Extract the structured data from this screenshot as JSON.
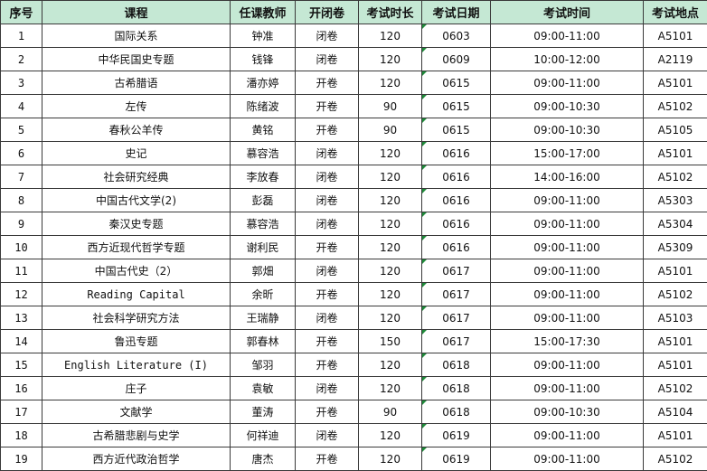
{
  "headers": [
    "序号",
    "课程",
    "任课教师",
    "开闭卷",
    "考试时长",
    "考试日期",
    "考试时间",
    "考试地点"
  ],
  "colors": {
    "header_bg": "#c5e8d4",
    "text_warning_marker": "#1f8b3a"
  },
  "rows": [
    [
      "1",
      "国际关系",
      "钟准",
      "闭卷",
      "120",
      "0603",
      "09:00-11:00",
      "A5101"
    ],
    [
      "2",
      "中华民国史专题",
      "钱锋",
      "闭卷",
      "120",
      "0609",
      "10:00-12:00",
      "A2119"
    ],
    [
      "3",
      "古希腊语",
      "潘亦婷",
      "开卷",
      "120",
      "0615",
      "09:00-11:00",
      "A5101"
    ],
    [
      "4",
      "左传",
      "陈绪波",
      "开卷",
      "90",
      "0615",
      "09:00-10:30",
      "A5102"
    ],
    [
      "5",
      "春秋公羊传",
      "黄铭",
      "开卷",
      "90",
      "0615",
      "09:00-10:30",
      "A5105"
    ],
    [
      "6",
      "史记",
      "慕容浩",
      "闭卷",
      "120",
      "0616",
      "15:00-17:00",
      "A5101"
    ],
    [
      "7",
      "社会研究经典",
      "李放春",
      "闭卷",
      "120",
      "0616",
      "14:00-16:00",
      "A5102"
    ],
    [
      "8",
      "中国古代文学(2)",
      "彭磊",
      "闭卷",
      "120",
      "0616",
      "09:00-11:00",
      "A5303"
    ],
    [
      "9",
      "秦汉史专题",
      "慕容浩",
      "闭卷",
      "120",
      "0616",
      "09:00-11:00",
      "A5304"
    ],
    [
      "10",
      "西方近现代哲学专题",
      "谢利民",
      "开卷",
      "120",
      "0616",
      "09:00-11:00",
      "A5309"
    ],
    [
      "11",
      "中国古代史（2）",
      "郭畑",
      "闭卷",
      "120",
      "0617",
      "09:00-11:00",
      "A5101"
    ],
    [
      "12",
      "Reading Capital",
      "余昕",
      "开卷",
      "120",
      "0617",
      "09:00-11:00",
      "A5102"
    ],
    [
      "13",
      "社会科学研究方法",
      "王瑞静",
      "闭卷",
      "120",
      "0617",
      "09:00-11:00",
      "A5103"
    ],
    [
      "14",
      "鲁迅专题",
      "郭春林",
      "开卷",
      "150",
      "0617",
      "15:00-17:30",
      "A5101"
    ],
    [
      "15",
      "English Literature (I)",
      "邹羽",
      "开卷",
      "120",
      "0618",
      "09:00-11:00",
      "A5101"
    ],
    [
      "16",
      "庄子",
      "袁敏",
      "闭卷",
      "120",
      "0618",
      "09:00-11:00",
      "A5102"
    ],
    [
      "17",
      "文献学",
      "董涛",
      "开卷",
      "90",
      "0618",
      "09:00-10:30",
      "A5104"
    ],
    [
      "18",
      "古希腊悲剧与史学",
      "何祥迪",
      "闭卷",
      "120",
      "0619",
      "09:00-11:00",
      "A5101"
    ],
    [
      "19",
      "西方近代政治哲学",
      "唐杰",
      "开卷",
      "120",
      "0619",
      "09:00-11:00",
      "A5102"
    ]
  ]
}
